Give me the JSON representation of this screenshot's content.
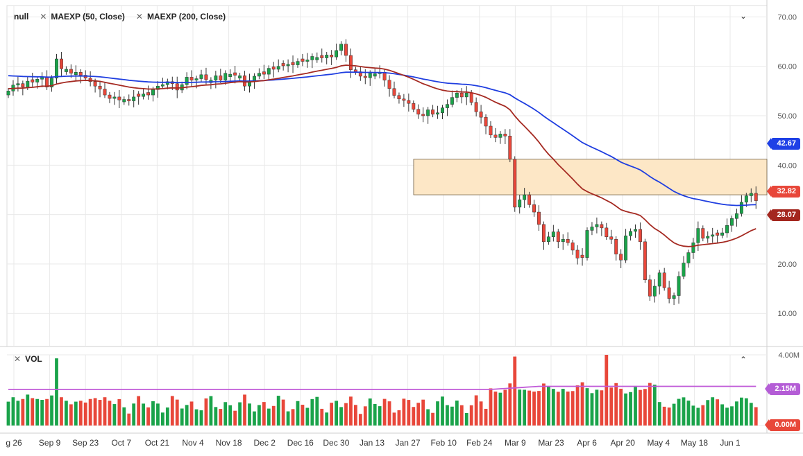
{
  "legend": {
    "symbol": "null",
    "ma50": "MAEXP (50, Close)",
    "ma200": "MAEXP (200, Close)",
    "vol": "VOL"
  },
  "controls": {
    "collapse_main_icon": "chevron-down-icon",
    "collapse_vol_icon": "chevron-up-icon",
    "close_icon": "close-icon"
  },
  "badges": {
    "ma200": {
      "label": "42.67",
      "color": "#1e40e6"
    },
    "price": {
      "label": "32.82",
      "color": "#e8473a"
    },
    "ma50": {
      "label": "28.07",
      "color": "#a4271f"
    },
    "vol_ma": {
      "label": "2.15M",
      "color": "#b45dd6"
    },
    "vol_zero": {
      "label": "0.00M",
      "color": "#e8473a"
    }
  },
  "colors": {
    "up": "#1aa34a",
    "down": "#e8473a",
    "ma50": "#a52a22",
    "ma200": "#1f3ee0",
    "vol_ma": "#c05ad8",
    "zone_fill": "#fde7c6",
    "zone_stroke": "#6b5a3e",
    "grid": "#e9e9e9"
  },
  "chart_data": {
    "type": "candlestick",
    "price_axis": {
      "ticks": [
        "70.00",
        "60.00",
        "50.00",
        "40.00",
        "30.00",
        "20.00",
        "10.00"
      ],
      "range": [
        3.3,
        72.3
      ]
    },
    "volume_axis": {
      "ticks": [
        "4.00M"
      ],
      "range": [
        0,
        4.0
      ]
    },
    "x_ticks": [
      "g 26",
      "Sep 9",
      "Sep 23",
      "Oct 7",
      "Oct 21",
      "Nov 4",
      "Nov 18",
      "Dec 2",
      "Dec 16",
      "Dec 30",
      "Jan 13",
      "Jan 27",
      "Feb 10",
      "Feb 24",
      "Mar 9",
      "Mar 23",
      "Apr 6",
      "Apr 20",
      "May 4",
      "May 18",
      "Jun 1"
    ],
    "resistance_zone": {
      "low": 34.0,
      "high": 41.2,
      "from": "Feb 5",
      "to": "end"
    },
    "closes": [
      55.0,
      56.2,
      56.5,
      55.8,
      57.0,
      56.8,
      57.4,
      57.8,
      55.8,
      57.6,
      61.5,
      59.5,
      59.4,
      58.6,
      58.8,
      58.2,
      57.6,
      56.9,
      56.0,
      55.4,
      54.2,
      53.5,
      53.8,
      53.2,
      53.3,
      53.0,
      53.8,
      53.9,
      54.4,
      54.2,
      55.3,
      56.0,
      56.3,
      56.9,
      56.5,
      55.2,
      56.3,
      57.8,
      57.2,
      57.5,
      58.3,
      57.3,
      57.2,
      58.1,
      57.2,
      58.6,
      58.4,
      58.2,
      58.1,
      56.0,
      57.1,
      58.0,
      58.6,
      58.4,
      59.6,
      59.4,
      60.0,
      60.1,
      60.4,
      60.3,
      61.0,
      61.0,
      61.3,
      62.0,
      61.8,
      61.7,
      62.3,
      61.9,
      63.2,
      64.5,
      62.2,
      59.3,
      58.9,
      58.0,
      57.7,
      58.6,
      58.5,
      58.8,
      57.2,
      55.5,
      54.1,
      53.4,
      53.1,
      52.5,
      51.3,
      50.3,
      50.0,
      51.2,
      50.3,
      50.6,
      51.6,
      52.3,
      53.7,
      54.6,
      53.8,
      54.6,
      52.7,
      50.8,
      49.7,
      47.9,
      46.1,
      45.6,
      46.3,
      45.9,
      41.2,
      31.5,
      33.0,
      34.0,
      32.0,
      30.5,
      28.0,
      24.5,
      25.5,
      26.5,
      24.5,
      25.0,
      24.3,
      22.8,
      21.2,
      21.3,
      26.8,
      27.5,
      28.0,
      27.3,
      25.5,
      25.0,
      22.0,
      20.8,
      25.7,
      26.6,
      27.0,
      24.5,
      16.8,
      13.5,
      15.5,
      18.2,
      15.2,
      13.0,
      13.6,
      17.5,
      20.2,
      22.3,
      24.3,
      27.2,
      25.2,
      25.6,
      25.9,
      25.8,
      26.3,
      27.8,
      29.2,
      30.2,
      32.5,
      33.8,
      34.3,
      32.8
    ],
    "ma50_end": 28.07,
    "ma200_end": 42.67,
    "volume_ma_level": 2.15,
    "volume_start": [
      1.35,
      1.6,
      1.4,
      1.5,
      1.75,
      1.55,
      1.5,
      1.45,
      1.5,
      1.7,
      3.8,
      1.6,
      1.4,
      1.2,
      1.35,
      1.4,
      1.3,
      1.5,
      1.55,
      1.45,
      1.6,
      1.4
    ]
  }
}
